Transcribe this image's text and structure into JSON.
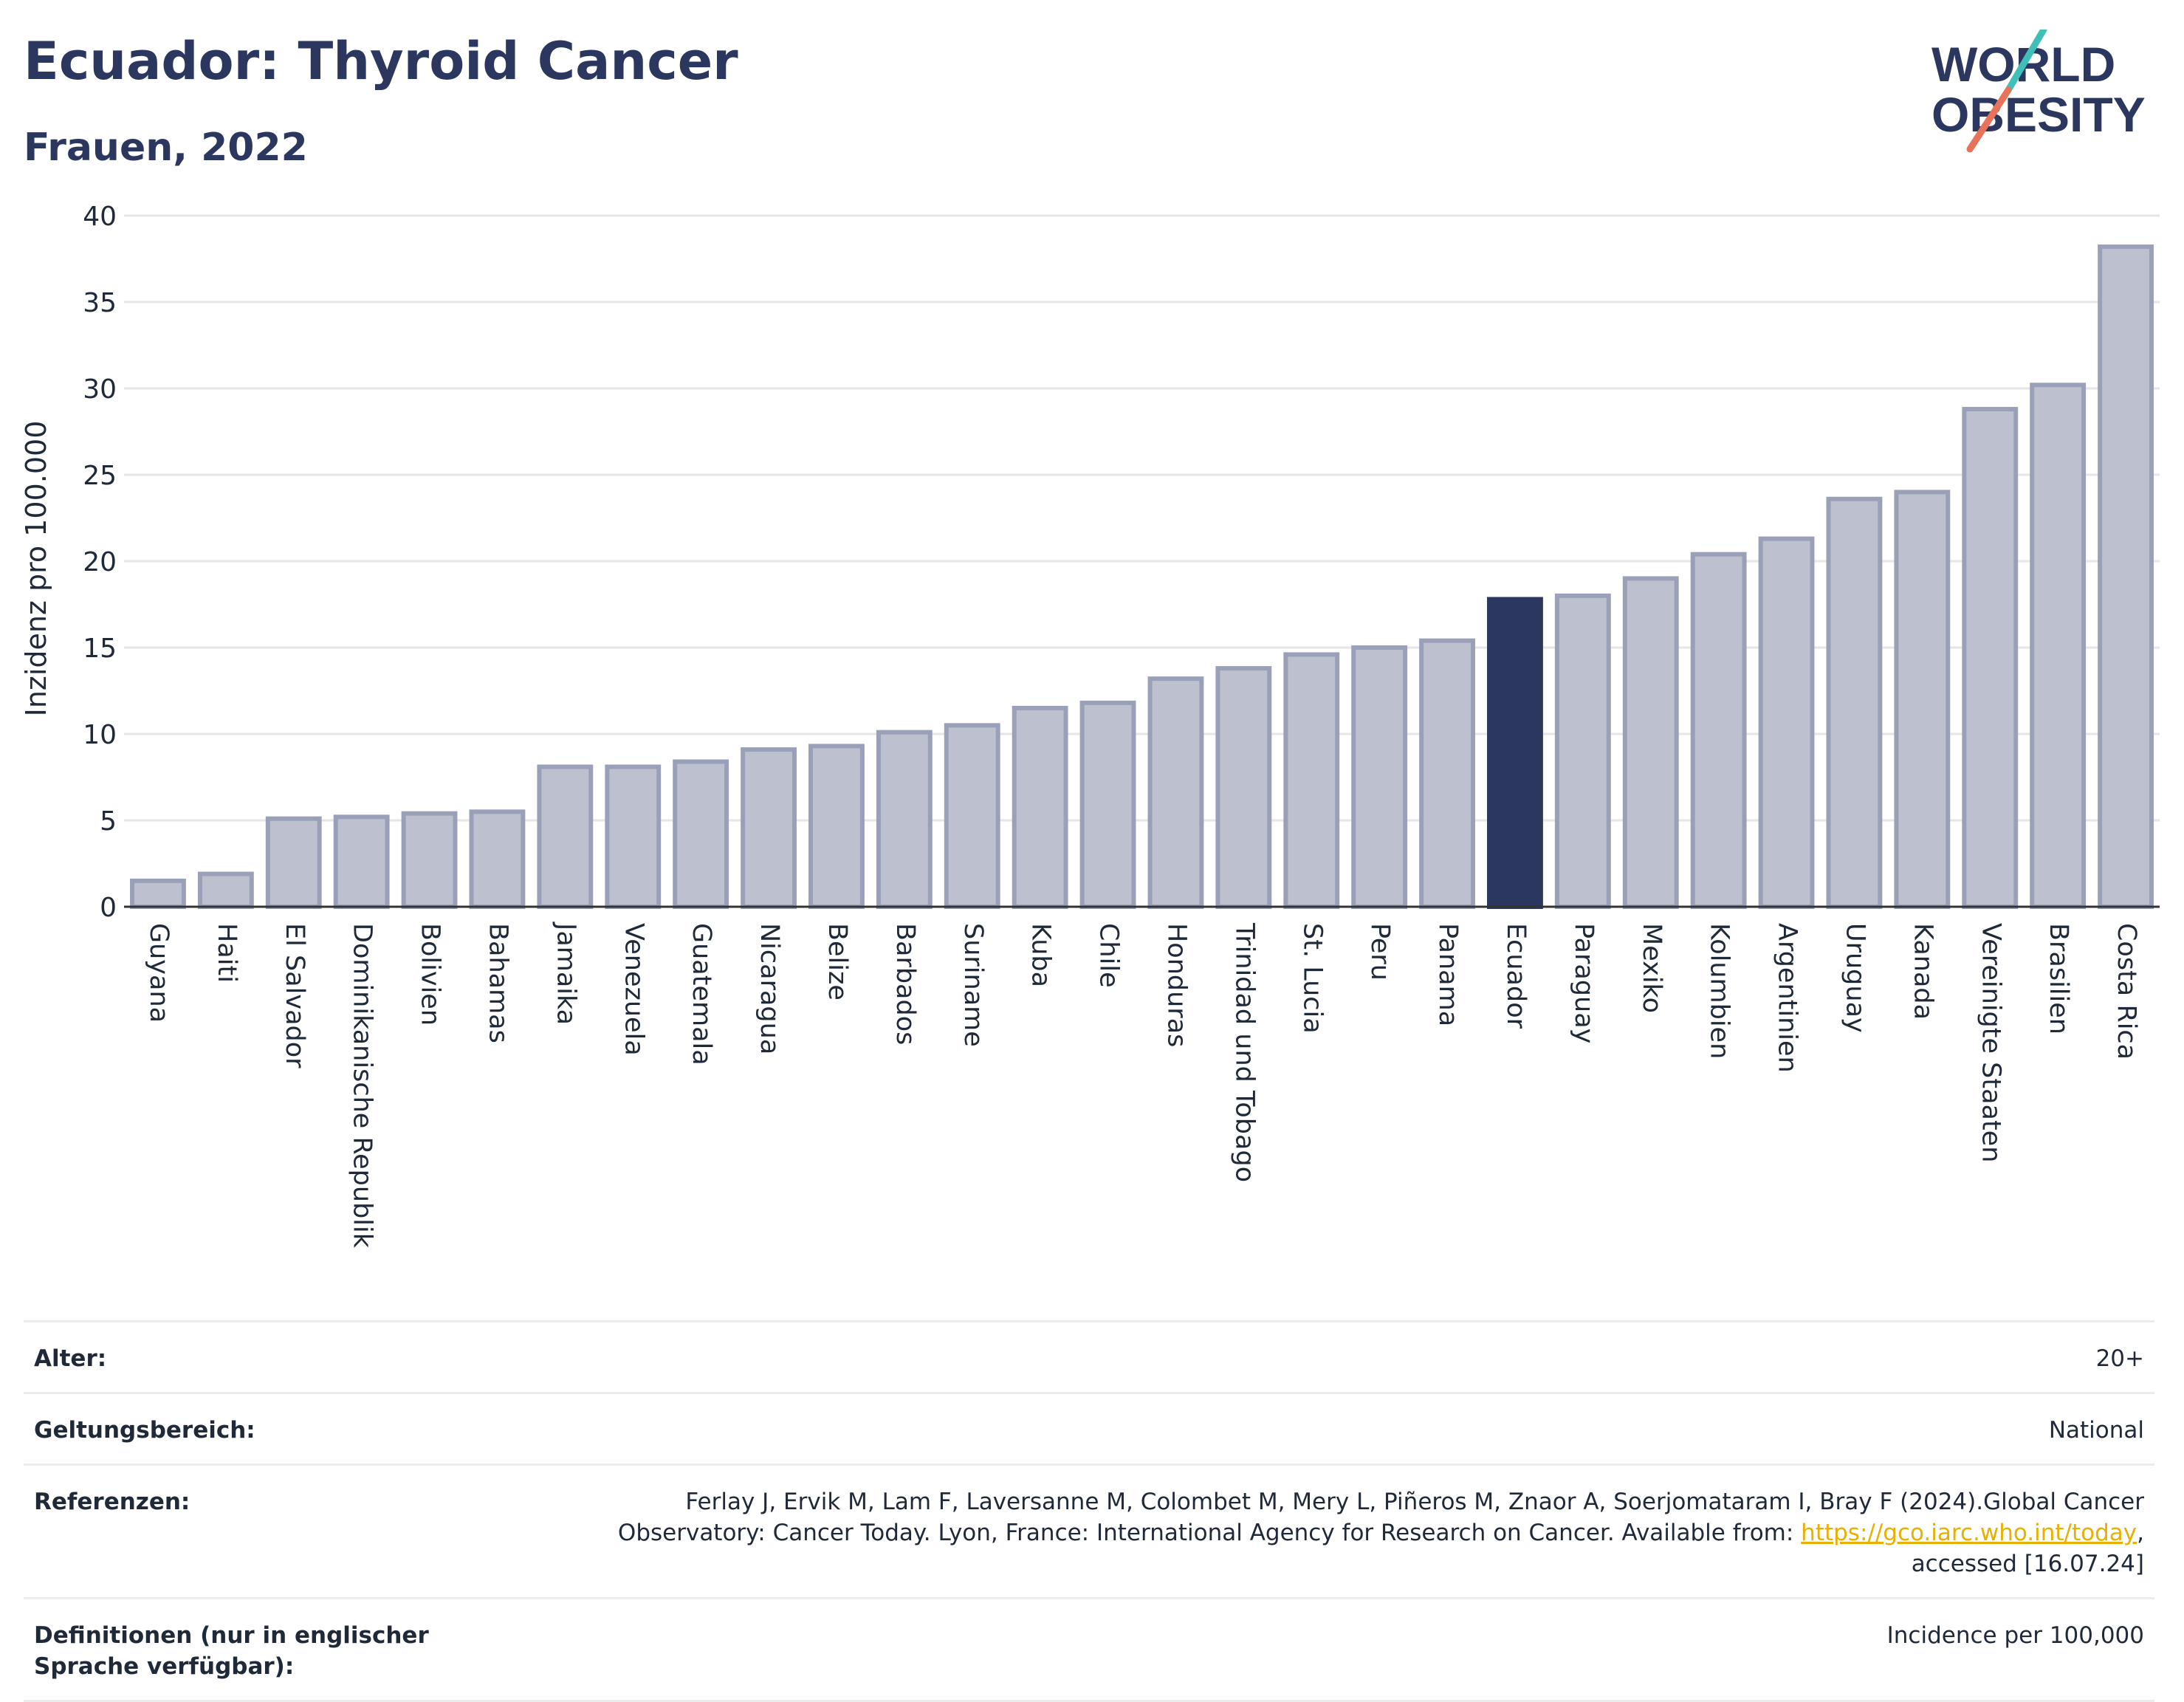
{
  "header": {
    "title": "Ecuador: Thyroid Cancer",
    "subtitle": "Frauen, 2022",
    "logo_line1": "WORLD",
    "logo_line2": "OBESITY"
  },
  "colors": {
    "highlight": "#2b375f",
    "bar_fill": "#bcc0cf",
    "bar_stroke": "#9aa0b8",
    "title": "#2b375f",
    "link": "#e8b000",
    "logo_teal": "#3fbfb8",
    "logo_coral": "#e8735a"
  },
  "chart_data": {
    "type": "bar",
    "ylabel": "Inzidenz pro 100.000",
    "ylim": [
      0,
      40
    ],
    "yticks": [
      0,
      5,
      10,
      15,
      20,
      25,
      30,
      35,
      40
    ],
    "grid": true,
    "highlight": "Ecuador",
    "categories": [
      "Guyana",
      "Haiti",
      "El Salvador",
      "Dominikanische Republik",
      "Bolivien",
      "Bahamas",
      "Jamaika",
      "Venezuela",
      "Guatemala",
      "Nicaragua",
      "Belize",
      "Barbados",
      "Suriname",
      "Kuba",
      "Chile",
      "Honduras",
      "Trinidad und Tobago",
      "St. Lucia",
      "Peru",
      "Panama",
      "Ecuador",
      "Paraguay",
      "Mexiko",
      "Kolumbien",
      "Argentinien",
      "Uruguay",
      "Kanada",
      "Vereinigte Staaten",
      "Brasilien",
      "Costa Rica"
    ],
    "values": [
      1.5,
      1.9,
      5.1,
      5.2,
      5.4,
      5.5,
      8.1,
      8.1,
      8.4,
      9.1,
      9.3,
      10.1,
      10.5,
      11.5,
      11.8,
      13.2,
      13.8,
      14.6,
      15.0,
      15.4,
      17.8,
      18.0,
      19.0,
      20.4,
      21.3,
      23.6,
      24.0,
      28.8,
      30.2,
      38.2
    ]
  },
  "meta": [
    {
      "label": "Alter:",
      "value": "20+"
    },
    {
      "label": "Geltungsbereich:",
      "value": "National"
    },
    {
      "label": "Referenzen:",
      "value": "Ferlay J, Ervik M, Lam F, Laversanne M, Colombet M, Mery L, Piñeros M, Znaor A, Soerjomataram I, Bray F (2024).Global Cancer Observatory: Cancer Today. Lyon, France: International Agency for Research on Cancer. Available from: ",
      "link": "https://gco.iarc.who.int/today",
      "value_after": ", accessed [16.07.24]"
    },
    {
      "label": "Definitionen (nur in englischer Sprache verfügbar):",
      "value": "Incidence per 100,000"
    }
  ]
}
